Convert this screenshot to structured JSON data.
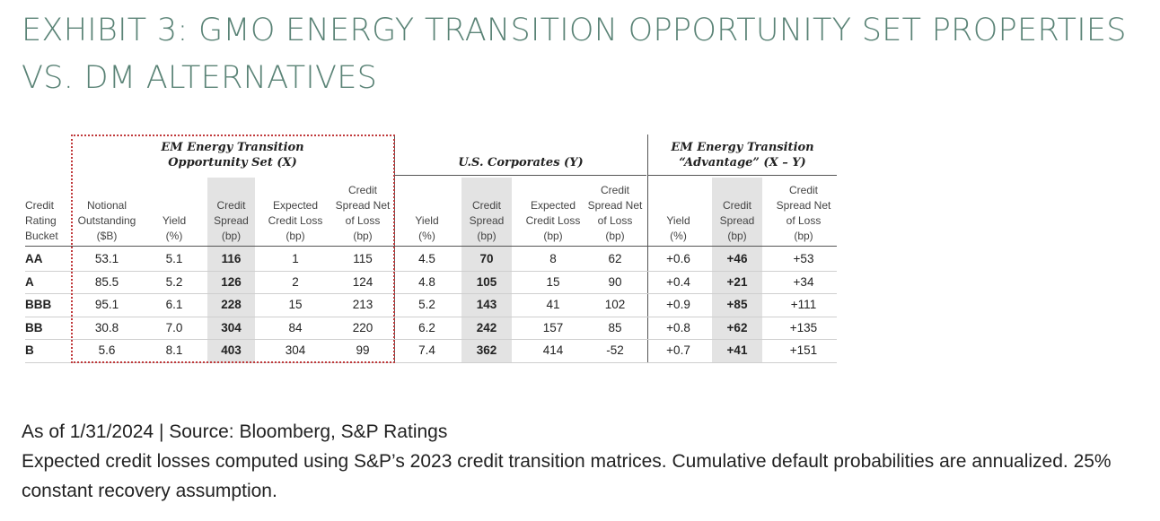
{
  "title": "EXHIBIT 3: GMO ENERGY TRANSITION OPPORTUNITY SET PROPERTIES VS. DM ALTERNATIVES",
  "groups": {
    "em": [
      "EM Energy Transition",
      "Opportunity Set (X)"
    ],
    "us": [
      "U.S. Corporates (Y)"
    ],
    "adv": [
      "EM Energy Transition",
      "“Advantage” (X – Y)"
    ]
  },
  "columns": [
    [
      "Credit",
      "Rating",
      "Bucket"
    ],
    [
      "Notional",
      "Outstanding",
      "($B)"
    ],
    [
      "Yield",
      "(%)"
    ],
    [
      "Credit",
      "Spread",
      "(bp)"
    ],
    [
      "Expected",
      "Credit Loss",
      "(bp)"
    ],
    [
      "Credit",
      "Spread Net",
      "of Loss",
      "(bp)"
    ],
    [
      "Yield",
      "(%)"
    ],
    [
      "Credit",
      "Spread",
      "(bp)"
    ],
    [
      "Expected",
      "Credit Loss",
      "(bp)"
    ],
    [
      "Credit",
      "Spread Net",
      "of Loss",
      "(bp)"
    ],
    [
      "Yield",
      "(%)"
    ],
    [
      "Credit",
      "Spread",
      "(bp)"
    ],
    [
      "Credit",
      "Spread Net",
      "of Loss",
      "(bp)"
    ]
  ],
  "rows": [
    [
      "AA",
      "53.1",
      "5.1",
      "116",
      "1",
      "115",
      "4.5",
      "70",
      "8",
      "62",
      "+0.6",
      "+46",
      "+53"
    ],
    [
      "A",
      "85.5",
      "5.2",
      "126",
      "2",
      "124",
      "4.8",
      "105",
      "15",
      "90",
      "+0.4",
      "+21",
      "+34"
    ],
    [
      "BBB",
      "95.1",
      "6.1",
      "228",
      "15",
      "213",
      "5.2",
      "143",
      "41",
      "102",
      "+0.9",
      "+85",
      "+111"
    ],
    [
      "BB",
      "30.8",
      "7.0",
      "304",
      "84",
      "220",
      "6.2",
      "242",
      "157",
      "85",
      "+0.8",
      "+62",
      "+135"
    ],
    [
      "B",
      "5.6",
      "8.1",
      "403",
      "304",
      "99",
      "7.4",
      "362",
      "414",
      "-52",
      "+0.7",
      "+41",
      "+151"
    ]
  ],
  "footer": {
    "line1": "As of 1/31/2024 | Source: Bloomberg, S&P Ratings",
    "line2": "Expected credit losses computed using S&P’s 2023 credit transition matrices. Cumulative default probabilities are annualized. 25% constant recovery assumption."
  },
  "colors": {
    "title": "#5a8376",
    "highlight": "#e3e3e3",
    "dotted_border": "#c0393b"
  }
}
